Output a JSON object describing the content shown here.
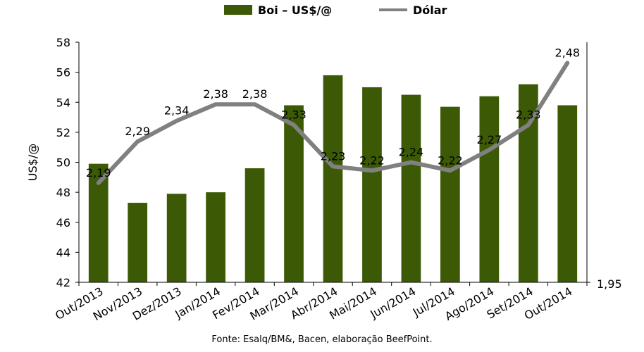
{
  "chart_data": {
    "type": "bar+line",
    "title": "",
    "ylabel": "US$/@",
    "categories": [
      "Out/2013",
      "Nov/2013",
      "Dez/2013",
      "Jan/2014",
      "Fev/2014",
      "Mar/2014",
      "Abr/2014",
      "Mai/2014",
      "Jun/2014",
      "Jul/2014",
      "Ago/2014",
      "Set/2014",
      "Out/2014"
    ],
    "series": [
      {
        "name": "Boi – US$/@",
        "type": "bar",
        "axis": "left",
        "color": "#3c5a06",
        "values": [
          49.9,
          47.3,
          47.9,
          48.0,
          49.6,
          53.8,
          55.8,
          55.0,
          54.5,
          53.7,
          54.4,
          55.2,
          53.8
        ]
      },
      {
        "name": "Dólar",
        "type": "line",
        "axis": "right",
        "color": "#808080",
        "values": [
          2.19,
          2.29,
          2.34,
          2.38,
          2.38,
          2.33,
          2.23,
          2.22,
          2.24,
          2.22,
          2.27,
          2.33,
          2.48
        ],
        "labels": [
          "2,19",
          "2,29",
          "2,34",
          "2,38",
          "2,38",
          "2,33",
          "2,23",
          "2,22",
          "2,24",
          "2,22",
          "2,27",
          "2,33",
          "2,48"
        ]
      }
    ],
    "ylim": [
      42,
      58
    ],
    "yticks": [
      "42",
      "44",
      "46",
      "48",
      "50",
      "52",
      "54",
      "56",
      "58"
    ],
    "y2lim": [
      1.95,
      2.53
    ],
    "y2ticks": [
      {
        "value": 1.95,
        "label": "1,95"
      }
    ],
    "legend": "top-center",
    "grid": false
  },
  "source": "Fonte:  Esalq/BM&,  Bacen,  elaboração  BeefPoint."
}
